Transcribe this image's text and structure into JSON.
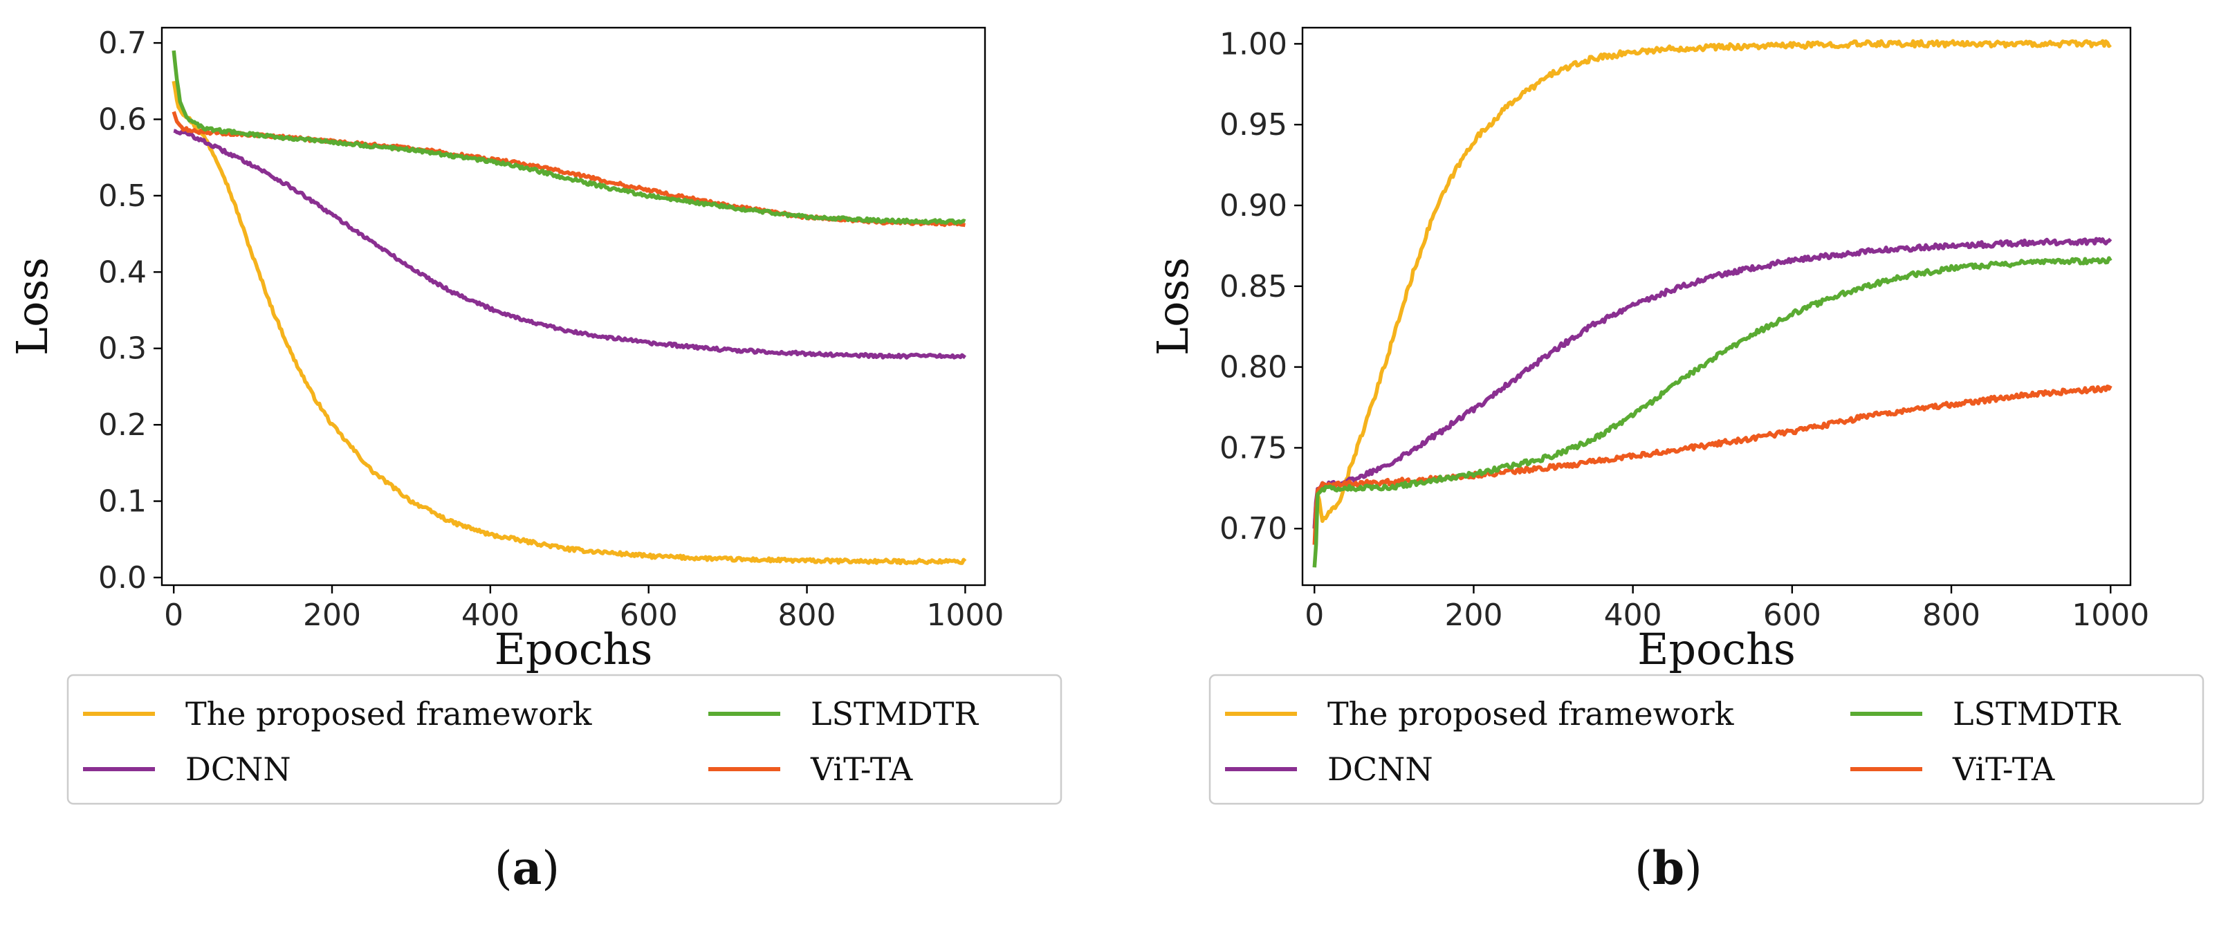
{
  "colors": {
    "proposed": "#f5b21c",
    "dcnn": "#8a2f91",
    "lstmdtr": "#5aab32",
    "vitta": "#ee5a1e"
  },
  "chart_data": [
    {
      "type": "line",
      "panel": "a",
      "caption": "a",
      "xlabel": "Epochs",
      "ylabel": "Loss",
      "xlim": [
        -15,
        1025
      ],
      "ylim": [
        -0.01,
        0.72
      ],
      "xticks": [
        0,
        200,
        400,
        600,
        800,
        1000
      ],
      "yticks": [
        0.0,
        0.1,
        0.2,
        0.3,
        0.4,
        0.5,
        0.6,
        0.7
      ],
      "ytick_labels": [
        "0.0",
        "0.1",
        "0.2",
        "0.3",
        "0.4",
        "0.5",
        "0.6",
        "0.7"
      ],
      "legend": [
        "The proposed framework",
        "LSTMDTR",
        "DCNN",
        "ViT-TA"
      ],
      "legend_placement": "below",
      "series": [
        {
          "name": "The proposed framework",
          "color_key": "proposed",
          "x": [
            0,
            5,
            10,
            20,
            40,
            60,
            80,
            100,
            125,
            150,
            175,
            200,
            250,
            300,
            350,
            400,
            500,
            600,
            700,
            800,
            900,
            1000
          ],
          "values": [
            0.65,
            0.62,
            0.61,
            0.6,
            0.575,
            0.535,
            0.48,
            0.42,
            0.35,
            0.29,
            0.24,
            0.2,
            0.14,
            0.1,
            0.073,
            0.056,
            0.037,
            0.028,
            0.024,
            0.022,
            0.021,
            0.021
          ]
        },
        {
          "name": "DCNN",
          "color_key": "dcnn",
          "x": [
            0,
            20,
            50,
            100,
            150,
            200,
            250,
            300,
            350,
            400,
            450,
            500,
            600,
            700,
            800,
            900,
            1000
          ],
          "values": [
            0.585,
            0.58,
            0.565,
            0.54,
            0.51,
            0.475,
            0.44,
            0.405,
            0.375,
            0.352,
            0.335,
            0.322,
            0.307,
            0.298,
            0.293,
            0.29,
            0.29
          ]
        },
        {
          "name": "LSTMDTR",
          "color_key": "lstmdtr",
          "x": [
            0,
            3,
            8,
            15,
            25,
            40,
            60,
            100,
            200,
            300,
            400,
            450,
            500,
            550,
            600,
            700,
            800,
            900,
            1000
          ],
          "values": [
            0.69,
            0.66,
            0.625,
            0.605,
            0.595,
            0.588,
            0.585,
            0.58,
            0.57,
            0.56,
            0.545,
            0.535,
            0.522,
            0.51,
            0.5,
            0.485,
            0.472,
            0.467,
            0.466
          ]
        },
        {
          "name": "ViT-TA",
          "color_key": "vitta",
          "x": [
            0,
            3,
            8,
            20,
            40,
            100,
            200,
            300,
            400,
            450,
            500,
            550,
            600,
            700,
            800,
            900,
            1000
          ],
          "values": [
            0.61,
            0.6,
            0.59,
            0.585,
            0.583,
            0.58,
            0.571,
            0.562,
            0.548,
            0.54,
            0.53,
            0.518,
            0.507,
            0.487,
            0.472,
            0.465,
            0.463
          ]
        }
      ]
    },
    {
      "type": "line",
      "panel": "b",
      "caption": "b",
      "xlabel": "Epochs",
      "ylabel": "Loss",
      "xlim": [
        -15,
        1025
      ],
      "ylim": [
        0.665,
        1.01
      ],
      "xticks": [
        0,
        200,
        400,
        600,
        800,
        1000
      ],
      "yticks": [
        0.7,
        0.75,
        0.8,
        0.85,
        0.9,
        0.95,
        1.0
      ],
      "ytick_labels": [
        "0.70",
        "0.75",
        "0.80",
        "0.85",
        "0.90",
        "0.95",
        "1.00"
      ],
      "legend": [
        "The proposed framework",
        "LSTMDTR",
        "DCNN",
        "ViT-TA"
      ],
      "legend_placement": "below",
      "series": [
        {
          "name": "The proposed framework",
          "color_key": "proposed",
          "x": [
            0,
            3,
            10,
            20,
            30,
            40,
            50,
            75,
            100,
            125,
            150,
            175,
            200,
            250,
            300,
            350,
            400,
            450,
            500,
            600,
            700,
            800,
            1000
          ],
          "values": [
            0.7,
            0.725,
            0.705,
            0.71,
            0.715,
            0.73,
            0.745,
            0.78,
            0.82,
            0.86,
            0.895,
            0.92,
            0.94,
            0.965,
            0.982,
            0.991,
            0.995,
            0.997,
            0.998,
            0.999,
            1.0,
            1.0,
            1.0
          ]
        },
        {
          "name": "DCNN",
          "color_key": "dcnn",
          "x": [
            0,
            3,
            10,
            50,
            100,
            150,
            200,
            250,
            300,
            350,
            400,
            450,
            500,
            600,
            700,
            800,
            900,
            1000
          ],
          "values": [
            0.7,
            0.725,
            0.727,
            0.73,
            0.742,
            0.757,
            0.774,
            0.792,
            0.81,
            0.826,
            0.838,
            0.848,
            0.856,
            0.866,
            0.872,
            0.875,
            0.877,
            0.878
          ]
        },
        {
          "name": "LSTMDTR",
          "color_key": "lstmdtr",
          "x": [
            0,
            2,
            4,
            10,
            50,
            100,
            150,
            200,
            250,
            300,
            350,
            400,
            450,
            500,
            550,
            600,
            650,
            700,
            750,
            800,
            900,
            1000
          ],
          "values": [
            0.676,
            0.69,
            0.722,
            0.725,
            0.725,
            0.726,
            0.73,
            0.734,
            0.739,
            0.745,
            0.755,
            0.77,
            0.788,
            0.805,
            0.82,
            0.833,
            0.843,
            0.851,
            0.857,
            0.861,
            0.865,
            0.866
          ]
        },
        {
          "name": "ViT-TA",
          "color_key": "vitta",
          "x": [
            0,
            3,
            10,
            50,
            100,
            200,
            300,
            400,
            500,
            600,
            700,
            800,
            900,
            1000
          ],
          "values": [
            0.69,
            0.724,
            0.727,
            0.728,
            0.729,
            0.733,
            0.738,
            0.745,
            0.752,
            0.76,
            0.77,
            0.777,
            0.783,
            0.787
          ]
        }
      ]
    }
  ]
}
